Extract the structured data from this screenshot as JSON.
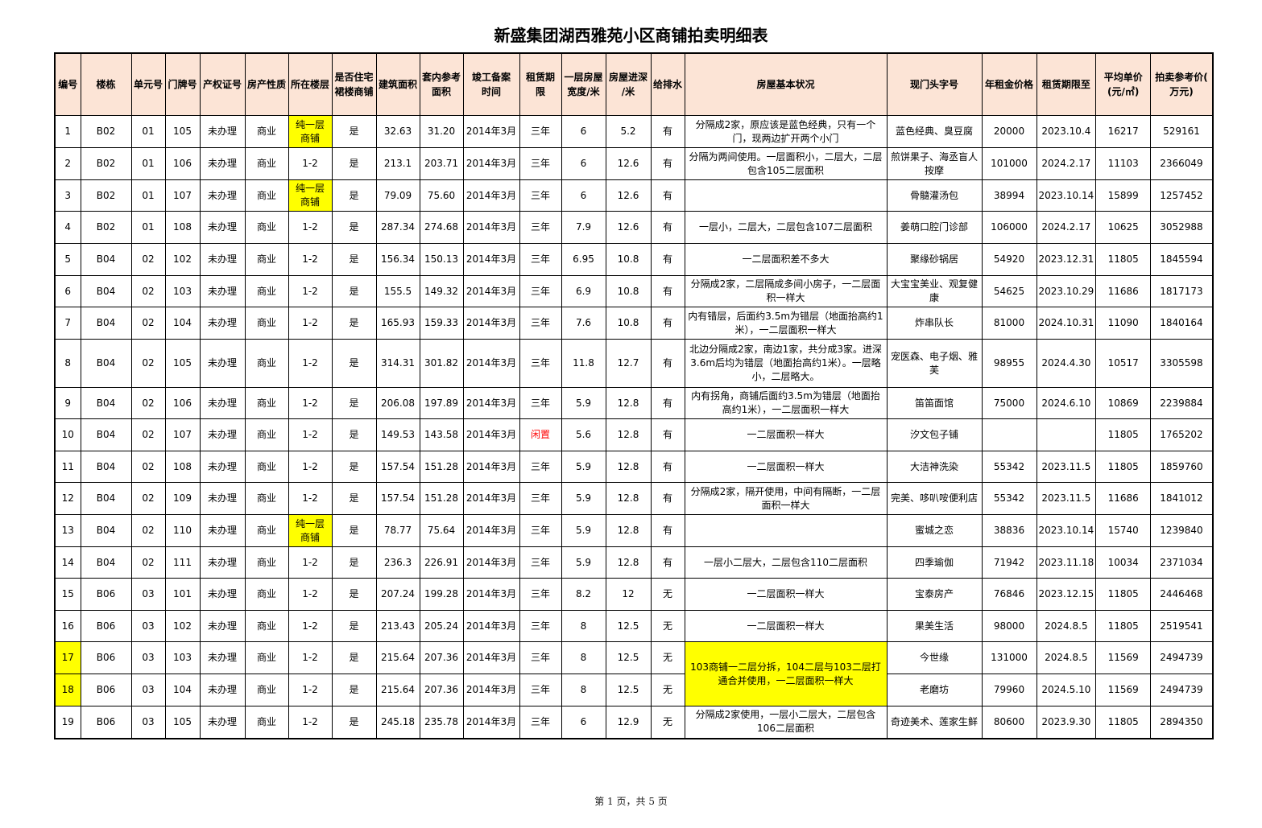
{
  "title": "新盛集团湖西雅苑小区商铺拍卖明细表",
  "footer": "第 1 页，共 5 页",
  "colors": {
    "header_bg": "#fce4d6",
    "highlight": "#ffff00",
    "alert_text": "#ff0000"
  },
  "columns": [
    "编号",
    "楼栋",
    "单元号",
    "门牌号",
    "产权证号",
    "房产性质",
    "所在楼层",
    "是否住宅裙楼商铺",
    "建筑面积",
    "套内参考面积",
    "竣工备案时间",
    "租赁期限",
    "一层房屋宽度/米",
    "房屋进深/米",
    "给排水",
    "房屋基本状况",
    "现门头字号",
    "年租金价格",
    "租赁期限至",
    "平均单价(元/㎡)",
    "拍卖参考价(万元)"
  ],
  "rows": [
    [
      "1",
      "B02",
      "01",
      "105",
      "未办理",
      "商业",
      "纯一层商铺",
      "是",
      "32.63",
      "31.20",
      "2014年3月",
      "三年",
      "6",
      "5.2",
      "有",
      "分隔成2家，原应该是蓝色经典，只有一个门，现两边扩开两个小门",
      "蓝色经典、臭豆腐",
      "20000",
      "2023.10.4",
      "16217",
      "529161"
    ],
    [
      "2",
      "B02",
      "01",
      "106",
      "未办理",
      "商业",
      "1-2",
      "是",
      "213.1",
      "203.71",
      "2014年3月",
      "三年",
      "6",
      "12.6",
      "有",
      "分隔为两间使用。一层面积小，二层大，二层包含105二层面积",
      "煎饼果子、海丞盲人按摩",
      "101000",
      "2024.2.17",
      "11103",
      "2366049"
    ],
    [
      "3",
      "B02",
      "01",
      "107",
      "未办理",
      "商业",
      "纯一层商铺",
      "是",
      "79.09",
      "75.60",
      "2014年3月",
      "三年",
      "6",
      "12.6",
      "有",
      "",
      "骨髓灌汤包",
      "38994",
      "2023.10.14",
      "15899",
      "1257452"
    ],
    [
      "4",
      "B02",
      "01",
      "108",
      "未办理",
      "商业",
      "1-2",
      "是",
      "287.34",
      "274.68",
      "2014年3月",
      "三年",
      "7.9",
      "12.6",
      "有",
      "一层小，二层大，二层包含107二层面积",
      "姜萌口腔门诊部",
      "106000",
      "2024.2.17",
      "10625",
      "3052988"
    ],
    [
      "5",
      "B04",
      "02",
      "102",
      "未办理",
      "商业",
      "1-2",
      "是",
      "156.34",
      "150.13",
      "2014年3月",
      "三年",
      "6.95",
      "10.8",
      "有",
      "一二层面积差不多大",
      "聚缘砂锅居",
      "54920",
      "2023.12.31",
      "11805",
      "1845594"
    ],
    [
      "6",
      "B04",
      "02",
      "103",
      "未办理",
      "商业",
      "1-2",
      "是",
      "155.5",
      "149.32",
      "2014年3月",
      "三年",
      "6.9",
      "10.8",
      "有",
      "分隔成2家，二层隔成多间小房子，一二层面积一样大",
      "大宝宝美业、观复健康",
      "54625",
      "2023.10.29",
      "11686",
      "1817173"
    ],
    [
      "7",
      "B04",
      "02",
      "104",
      "未办理",
      "商业",
      "1-2",
      "是",
      "165.93",
      "159.33",
      "2014年3月",
      "三年",
      "7.6",
      "10.8",
      "有",
      "内有错层，后面约3.5m为错层（地面抬高约1米），一二层面积一样大",
      "炸串队长",
      "81000",
      "2024.10.31",
      "11090",
      "1840164"
    ],
    [
      "8",
      "B04",
      "02",
      "105",
      "未办理",
      "商业",
      "1-2",
      "是",
      "314.31",
      "301.82",
      "2014年3月",
      "三年",
      "11.8",
      "12.7",
      "有",
      "北边分隔成2家，南边1家，共分成3家。进深3.6m后均为错层（地面抬高约1米）。一层略小，二层略大。",
      "宠医森、电子烟、雅芙",
      "98955",
      "2024.4.30",
      "10517",
      "3305598"
    ],
    [
      "9",
      "B04",
      "02",
      "106",
      "未办理",
      "商业",
      "1-2",
      "是",
      "206.08",
      "197.89",
      "2014年3月",
      "三年",
      "5.9",
      "12.8",
      "有",
      "内有拐角，商铺后面约3.5m为错层（地面抬高约1米），一二层面积一样大",
      "笛笛面馆",
      "75000",
      "2024.6.10",
      "10869",
      "2239884"
    ],
    [
      "10",
      "B04",
      "02",
      "107",
      "未办理",
      "商业",
      "1-2",
      "是",
      "149.53",
      "143.58",
      "2014年3月",
      "闲置",
      "5.6",
      "12.8",
      "有",
      "一二层面积一样大",
      "汐文包子铺",
      "",
      "",
      "11805",
      "1765202"
    ],
    [
      "11",
      "B04",
      "02",
      "108",
      "未办理",
      "商业",
      "1-2",
      "是",
      "157.54",
      "151.28",
      "2014年3月",
      "三年",
      "5.9",
      "12.8",
      "有",
      "一二层面积一样大",
      "大洁神洗染",
      "55342",
      "2023.11.5",
      "11805",
      "1859760"
    ],
    [
      "12",
      "B04",
      "02",
      "109",
      "未办理",
      "商业",
      "1-2",
      "是",
      "157.54",
      "151.28",
      "2014年3月",
      "三年",
      "5.9",
      "12.8",
      "有",
      "分隔成2家，隔开使用，中间有隔断，一二层面积一样大",
      "完美、哆叭咹便利店",
      "55342",
      "2023.11.5",
      "11686",
      "1841012"
    ],
    [
      "13",
      "B04",
      "02",
      "110",
      "未办理",
      "商业",
      "纯一层商铺",
      "是",
      "78.77",
      "75.64",
      "2014年3月",
      "三年",
      "5.9",
      "12.8",
      "有",
      "",
      "蜜城之恋",
      "38836",
      "2023.10.14",
      "15740",
      "1239840"
    ],
    [
      "14",
      "B04",
      "02",
      "111",
      "未办理",
      "商业",
      "1-2",
      "是",
      "236.3",
      "226.91",
      "2014年3月",
      "三年",
      "5.9",
      "12.8",
      "有",
      "一层小二层大，二层包含110二层面积",
      "四季瑜伽",
      "71942",
      "2023.11.18",
      "10034",
      "2371034"
    ],
    [
      "15",
      "B06",
      "03",
      "101",
      "未办理",
      "商业",
      "1-2",
      "是",
      "207.24",
      "199.28",
      "2014年3月",
      "三年",
      "8.2",
      "12",
      "无",
      "一二层面积一样大",
      "宝泰房产",
      "76846",
      "2023.12.15",
      "11805",
      "2446468"
    ],
    [
      "16",
      "B06",
      "03",
      "102",
      "未办理",
      "商业",
      "1-2",
      "是",
      "213.43",
      "205.24",
      "2014年3月",
      "三年",
      "8",
      "12.5",
      "无",
      "一二层面积一样大",
      "果美生活",
      "98000",
      "2024.8.5",
      "11805",
      "2519541"
    ],
    [
      "17",
      "B06",
      "03",
      "103",
      "未办理",
      "商业",
      "1-2",
      "是",
      "215.64",
      "207.36",
      "2014年3月",
      "三年",
      "8",
      "12.5",
      "无",
      "103商铺一二层分拆，104二层与103二层打通合并使用，一二层面积一样大",
      "今世缘",
      "131000",
      "2024.8.5",
      "11569",
      "2494739"
    ],
    [
      "18",
      "B06",
      "03",
      "104",
      "未办理",
      "商业",
      "1-2",
      "是",
      "215.64",
      "207.36",
      "2014年3月",
      "三年",
      "8",
      "12.5",
      "无",
      null,
      "老磨坊",
      "79960",
      "2024.5.10",
      "11569",
      "2494739"
    ],
    [
      "19",
      "B06",
      "03",
      "105",
      "未办理",
      "商业",
      "1-2",
      "是",
      "245.18",
      "235.78",
      "2014年3月",
      "三年",
      "6",
      "12.9",
      "无",
      "分隔成2家使用，一层小二层大，二层包含106二层面积",
      "奇迹美术、莲家生鲜",
      "80600",
      "2023.9.30",
      "11805",
      "2894350"
    ]
  ]
}
